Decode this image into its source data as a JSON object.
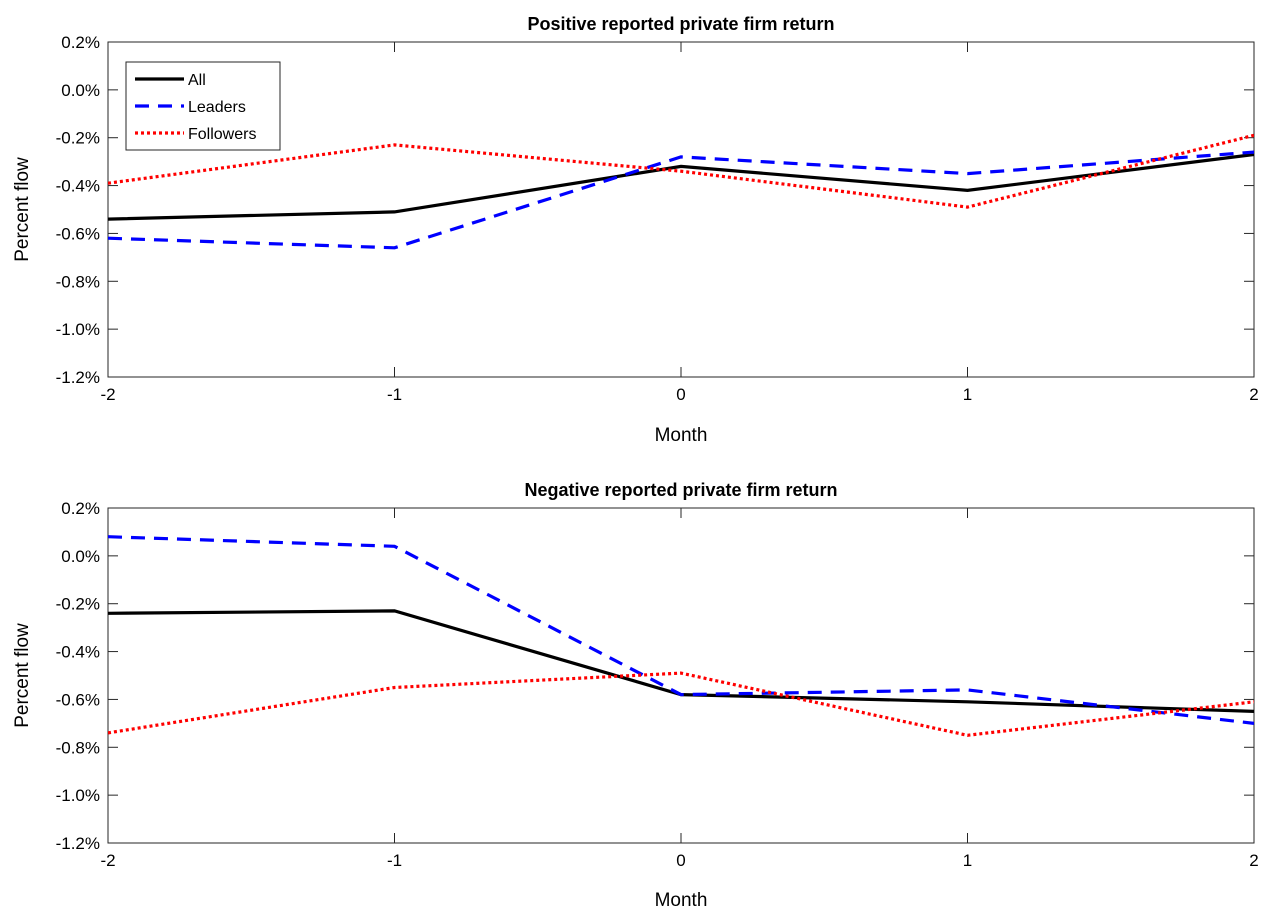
{
  "chart_data": [
    {
      "type": "line",
      "title": "Positive reported private firm return",
      "xlabel": "Month",
      "ylabel": "Percent flow",
      "x": [
        -2,
        -1,
        0,
        1,
        2
      ],
      "xlim": [
        -2,
        2
      ],
      "ylim": [
        -1.2,
        0.2
      ],
      "xticks": [
        "-2",
        "-1",
        "0",
        "1",
        "2"
      ],
      "yticks": [
        "0.2%",
        "0.0%",
        "-0.2%",
        "-0.4%",
        "-0.6%",
        "-0.8%",
        "-1.0%",
        "-1.2%"
      ],
      "grid": false,
      "legend_placement": "top-left",
      "series": [
        {
          "name": "All",
          "values": [
            -0.54,
            -0.51,
            -0.32,
            -0.42,
            -0.27
          ],
          "color": "#000000",
          "style": "solid"
        },
        {
          "name": "Leaders",
          "values": [
            -0.62,
            -0.66,
            -0.28,
            -0.35,
            -0.26
          ],
          "color": "#0000ff",
          "style": "dashed"
        },
        {
          "name": "Followers",
          "values": [
            -0.39,
            -0.23,
            -0.34,
            -0.49,
            -0.19
          ],
          "color": "#ff0000",
          "style": "dotted"
        }
      ]
    },
    {
      "type": "line",
      "title": "Negative reported private firm return",
      "xlabel": "Month",
      "ylabel": "Percent flow",
      "x": [
        -2,
        -1,
        0,
        1,
        2
      ],
      "xlim": [
        -2,
        2
      ],
      "ylim": [
        -1.2,
        0.2
      ],
      "xticks": [
        "-2",
        "-1",
        "0",
        "1",
        "2"
      ],
      "yticks": [
        "0.2%",
        "0.0%",
        "-0.2%",
        "-0.4%",
        "-0.6%",
        "-0.8%",
        "-1.0%",
        "-1.2%"
      ],
      "grid": false,
      "series": [
        {
          "values": [
            -0.24,
            -0.23,
            -0.58,
            -0.61,
            -0.65
          ],
          "color": "#000000",
          "style": "solid"
        },
        {
          "values": [
            0.08,
            0.04,
            -0.58,
            -0.56,
            -0.7
          ],
          "color": "#0000ff",
          "style": "dashed"
        },
        {
          "values": [
            -0.74,
            -0.55,
            -0.49,
            -0.75,
            -0.61
          ],
          "color": "#ff0000",
          "style": "dotted"
        }
      ]
    }
  ]
}
